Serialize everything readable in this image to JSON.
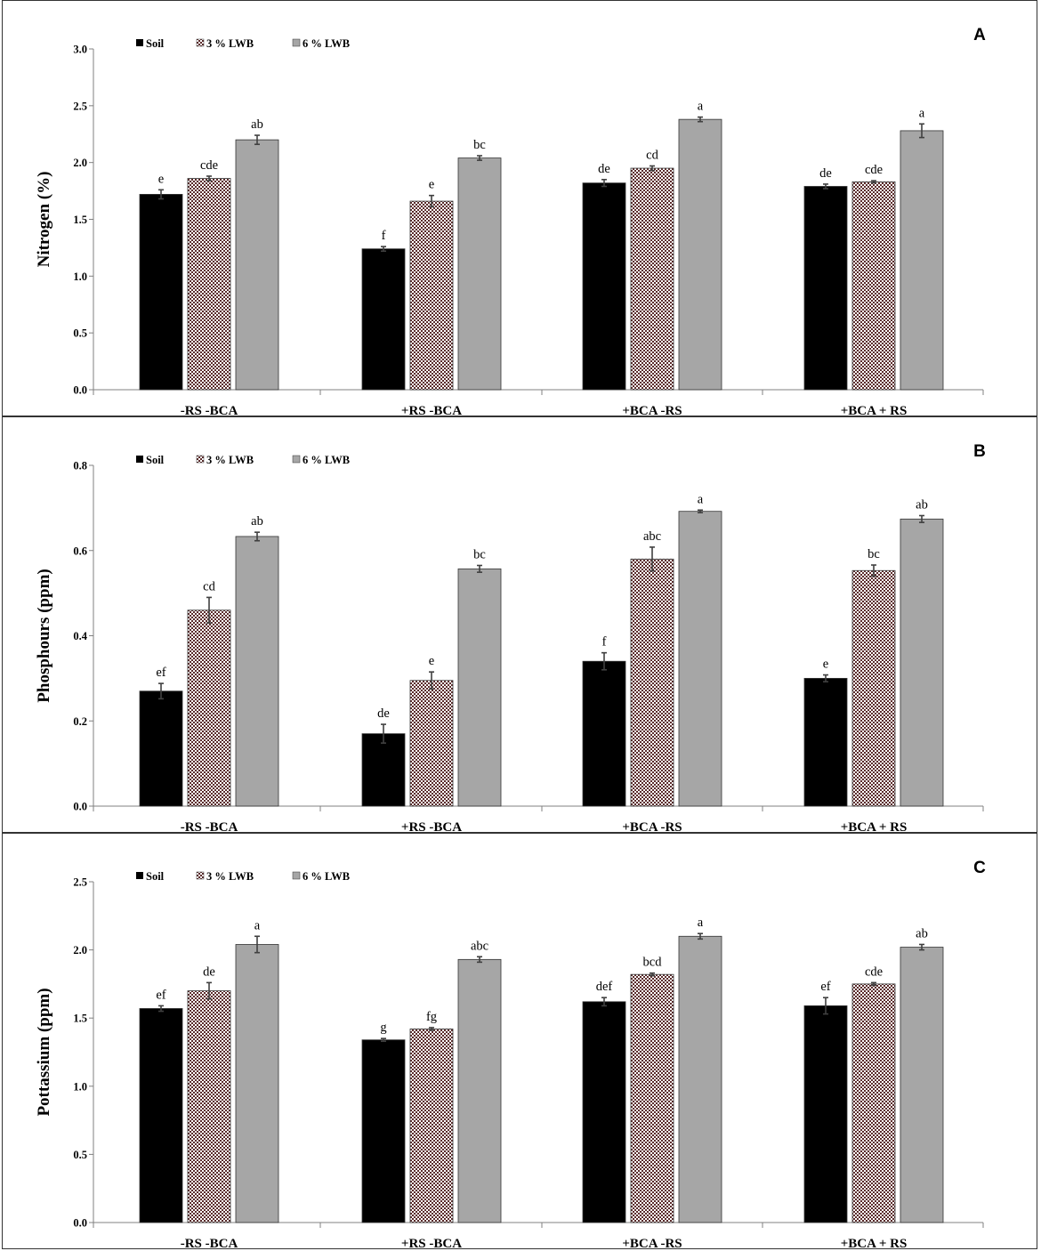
{
  "colors": {
    "soil": "#000000",
    "lwb3_bg": "#ffffff",
    "lwb3_check": "#5a2b2b",
    "lwb6": "#a6a6a6",
    "axis": "#808080",
    "error": "#404040"
  },
  "chart_data": [
    {
      "type": "bar",
      "panel_label": "A",
      "ylabel": "Nitrogen (%)",
      "ylim": [
        0,
        3.0
      ],
      "yticks": [
        "0.0",
        "0.5",
        "1.0",
        "1.5",
        "2.0",
        "2.5",
        "3.0"
      ],
      "categories": [
        "-RS -BCA",
        "+RS -BCA",
        "+BCA -RS",
        "+BCA + RS"
      ],
      "legend": [
        "Soil",
        "3 % LWB",
        "6 % LWB"
      ],
      "series": [
        {
          "name": "Soil",
          "values": [
            1.72,
            1.24,
            1.82,
            1.79
          ],
          "errors": [
            0.04,
            0.02,
            0.03,
            0.02
          ],
          "letters": [
            "e",
            "f",
            "de",
            "de"
          ]
        },
        {
          "name": "3 % LWB",
          "values": [
            1.86,
            1.66,
            1.95,
            1.83
          ],
          "errors": [
            0.02,
            0.05,
            0.02,
            0.01
          ],
          "letters": [
            "cde",
            "e",
            "cd",
            "cde"
          ]
        },
        {
          "name": "6 % LWB",
          "values": [
            2.2,
            2.04,
            2.38,
            2.28
          ],
          "errors": [
            0.04,
            0.02,
            0.02,
            0.06
          ],
          "letters": [
            "ab",
            "bc",
            "a",
            "a"
          ]
        }
      ]
    },
    {
      "type": "bar",
      "panel_label": "B",
      "ylabel": "Phosphours (ppm)",
      "ylim": [
        0,
        0.8
      ],
      "yticks": [
        "0.0",
        "0.2",
        "0.4",
        "0.6",
        "0.8"
      ],
      "categories": [
        "-RS -BCA",
        "+RS -BCA",
        "+BCA -RS",
        "+BCA + RS"
      ],
      "legend": [
        "Soil",
        "3 % LWB",
        "6 % LWB"
      ],
      "series": [
        {
          "name": "Soil",
          "values": [
            0.27,
            0.17,
            0.34,
            0.3
          ],
          "errors": [
            0.018,
            0.022,
            0.02,
            0.008
          ],
          "letters": [
            "ef",
            "de",
            "f",
            "e"
          ]
        },
        {
          "name": "3 % LWB",
          "values": [
            0.46,
            0.295,
            0.58,
            0.553
          ],
          "errors": [
            0.03,
            0.02,
            0.028,
            0.013
          ],
          "letters": [
            "cd",
            "e",
            "abc",
            "bc"
          ]
        },
        {
          "name": "6 % LWB",
          "values": [
            0.633,
            0.557,
            0.692,
            0.674
          ],
          "errors": [
            0.01,
            0.008,
            0.003,
            0.008
          ],
          "letters": [
            "ab",
            "bc",
            "a",
            "ab"
          ]
        }
      ]
    },
    {
      "type": "bar",
      "panel_label": "C",
      "ylabel": "Pottassium (ppm)",
      "ylim": [
        0,
        2.5
      ],
      "yticks": [
        "0.0",
        "0.5",
        "1.0",
        "1.5",
        "2.0",
        "2.5"
      ],
      "categories": [
        "-RS -BCA",
        "+RS -BCA",
        "+BCA -RS",
        "+BCA + RS"
      ],
      "legend": [
        "Soil",
        "3 % LWB",
        "6 % LWB"
      ],
      "series": [
        {
          "name": "Soil",
          "values": [
            1.57,
            1.34,
            1.62,
            1.59
          ],
          "errors": [
            0.02,
            0.01,
            0.03,
            0.06
          ],
          "letters": [
            "ef",
            "g",
            "def",
            "ef"
          ]
        },
        {
          "name": "3 % LWB",
          "values": [
            1.7,
            1.42,
            1.82,
            1.75
          ],
          "errors": [
            0.06,
            0.01,
            0.01,
            0.01
          ],
          "letters": [
            "de",
            "fg",
            "bcd",
            "cde"
          ]
        },
        {
          "name": "6 % LWB",
          "values": [
            2.04,
            1.93,
            2.1,
            2.02
          ],
          "errors": [
            0.06,
            0.02,
            0.02,
            0.02
          ],
          "letters": [
            "a",
            "abc",
            "a",
            "ab"
          ]
        }
      ]
    }
  ]
}
